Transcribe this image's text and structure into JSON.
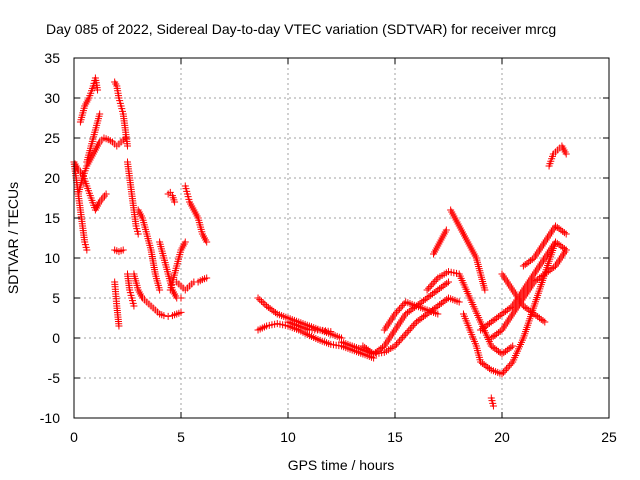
{
  "chart_data": {
    "type": "scatter",
    "title": "Day 085 of 2022, Sidereal Day-to-day VTEC variation (SDTVAR) for receiver mrcg",
    "xlabel": "GPS time / hours",
    "ylabel": "SDTVAR / TECUs",
    "xlim": [
      0,
      25
    ],
    "ylim": [
      -10,
      35
    ],
    "xticks": [
      0,
      5,
      10,
      15,
      20,
      25
    ],
    "yticks": [
      -10,
      -5,
      0,
      5,
      10,
      15,
      20,
      25,
      30,
      35
    ],
    "grid": true,
    "marker": "+",
    "color": "#ff0000",
    "series": [
      {
        "x": [
          0.0,
          0.2,
          0.4,
          0.6,
          0.8,
          1.0,
          1.2,
          1.5
        ],
        "y": [
          22,
          21,
          20.5,
          19,
          17.5,
          16,
          17,
          18
        ]
      },
      {
        "x": [
          0.3,
          0.5,
          0.7,
          0.9,
          1.0,
          1.1
        ],
        "y": [
          27,
          29,
          30,
          31.5,
          32.5,
          31
        ]
      },
      {
        "x": [
          0.0,
          0.1,
          0.2,
          0.3,
          0.4,
          0.5,
          0.6
        ],
        "y": [
          22,
          20,
          18,
          16,
          14,
          12,
          11
        ]
      },
      {
        "x": [
          0.2,
          0.4,
          0.6,
          0.8,
          1.0,
          1.2,
          1.4,
          1.6,
          1.8,
          2.0,
          2.2,
          2.4
        ],
        "y": [
          18,
          20,
          21.5,
          22.5,
          23.5,
          24.5,
          25,
          24.8,
          24.5,
          24,
          24.5,
          25
        ]
      },
      {
        "x": [
          0.6,
          0.8,
          1.0,
          1.2
        ],
        "y": [
          22,
          24,
          26,
          28
        ]
      },
      {
        "x": [
          1.9,
          2.0,
          2.1,
          2.2,
          2.3,
          2.4,
          2.5
        ],
        "y": [
          32,
          31.5,
          30,
          29,
          28,
          26,
          24
        ]
      },
      {
        "x": [
          2.5,
          2.6,
          2.7,
          2.8,
          2.9,
          3.0
        ],
        "y": [
          22,
          20,
          18,
          16,
          14,
          13
        ]
      },
      {
        "x": [
          1.9,
          2.1,
          2.3
        ],
        "y": [
          11,
          10.8,
          11
        ]
      },
      {
        "x": [
          1.9,
          2.0,
          2.1
        ],
        "y": [
          7,
          4,
          1.5
        ]
      },
      {
        "x": [
          2.5,
          2.6,
          2.7,
          2.8
        ],
        "y": [
          8,
          6,
          5,
          4
        ]
      },
      {
        "x": [
          2.8,
          3.0,
          3.2,
          3.4,
          3.6,
          3.8,
          4.0,
          4.2,
          4.4,
          4.6,
          4.8,
          5.0
        ],
        "y": [
          8,
          6,
          5,
          4.5,
          4,
          3.5,
          3,
          2.8,
          2.7,
          2.8,
          3,
          3.2
        ]
      },
      {
        "x": [
          3.0,
          3.2,
          3.4,
          3.6,
          3.8,
          4.0
        ],
        "y": [
          16,
          15,
          13,
          11,
          8,
          6
        ]
      },
      {
        "x": [
          4.0,
          4.2,
          4.4,
          4.6,
          4.8,
          5.0
        ],
        "y": [
          12,
          10,
          8,
          6,
          5,
          5
        ]
      },
      {
        "x": [
          4.4,
          4.5,
          4.6,
          4.7
        ],
        "y": [
          18,
          18.2,
          17.8,
          17
        ]
      },
      {
        "x": [
          4.8,
          5.0,
          5.2,
          5.4,
          5.6,
          5.8,
          6.0,
          6.2
        ],
        "y": [
          7,
          6.5,
          6,
          6.5,
          7,
          7,
          7.3,
          7.5
        ]
      },
      {
        "x": [
          5.2,
          5.3,
          5.4,
          5.6,
          5.8,
          6.0,
          6.2
        ],
        "y": [
          19,
          18,
          17,
          16,
          15,
          13,
          12
        ]
      },
      {
        "x": [
          4.5,
          4.6,
          4.8,
          5.0,
          5.2
        ],
        "y": [
          6,
          7,
          9,
          11,
          12
        ]
      },
      {
        "x": [
          8.6,
          9.0,
          9.5,
          10.0,
          10.5,
          11.0,
          11.5,
          12.0,
          12.5
        ],
        "y": [
          5,
          4,
          3,
          2.5,
          2,
          1.5,
          1,
          0.5,
          0
        ]
      },
      {
        "x": [
          8.6,
          9.0,
          9.5,
          10.0,
          10.5,
          11.0,
          11.5,
          12.0,
          12.5,
          13.0,
          13.5,
          14.0
        ],
        "y": [
          1,
          1.5,
          1.8,
          1.5,
          1,
          0.3,
          -0.3,
          -0.8,
          -1,
          -1.5,
          -2,
          -2.5
        ]
      },
      {
        "x": [
          10.0,
          10.5,
          11.0,
          11.5,
          12.0
        ],
        "y": [
          2,
          1.5,
          1,
          1,
          0.8
        ]
      },
      {
        "x": [
          12.5,
          13.0,
          13.5,
          14.0,
          14.5,
          15.0,
          15.5,
          16.0,
          16.5,
          17.0,
          17.5,
          18.0
        ],
        "y": [
          -0.5,
          -1,
          -1.5,
          -2,
          -1.8,
          -1,
          0.5,
          2,
          3,
          4,
          5,
          4.5
        ]
      },
      {
        "x": [
          13.5,
          14.0,
          14.5,
          15.0,
          15.5,
          16.0,
          16.5,
          17.0,
          17.5
        ],
        "y": [
          -1,
          -2,
          -1,
          1,
          3,
          4,
          5,
          6,
          7
        ]
      },
      {
        "x": [
          14.5,
          15.0,
          15.5,
          16.0,
          16.5,
          17.0
        ],
        "y": [
          1,
          3,
          4.5,
          4,
          3.5,
          3
        ]
      },
      {
        "x": [
          16.5,
          17.0,
          17.5,
          18.0,
          18.5,
          19.0,
          19.5,
          20.0,
          20.5
        ],
        "y": [
          6,
          7.5,
          8.3,
          8,
          5,
          2,
          -1,
          -2,
          -1
        ]
      },
      {
        "x": [
          16.8,
          17.0,
          17.2,
          17.4
        ],
        "y": [
          10.5,
          11.5,
          12.5,
          13.5
        ]
      },
      {
        "x": [
          17.6,
          18.0,
          18.4,
          18.8,
          19.2
        ],
        "y": [
          16,
          14,
          12,
          10,
          6
        ]
      },
      {
        "x": [
          18.2,
          18.5,
          18.8,
          19.0,
          19.5,
          20.0,
          20.5,
          21.0,
          21.5,
          22.0,
          22.5,
          23.0
        ],
        "y": [
          3,
          1,
          -1,
          -3,
          -4,
          -4.5,
          -3,
          0,
          4,
          8,
          12,
          11
        ]
      },
      {
        "x": [
          19.5,
          19.6
        ],
        "y": [
          -7.5,
          -8.5
        ]
      },
      {
        "x": [
          19.0,
          19.5,
          20.0,
          20.5,
          21.0,
          21.5,
          22.0,
          22.5
        ],
        "y": [
          1,
          2,
          3,
          4,
          6,
          8,
          10,
          12
        ]
      },
      {
        "x": [
          19.5,
          20.0,
          20.5,
          21.0,
          21.5,
          22.0,
          22.5,
          23.0
        ],
        "y": [
          0,
          1,
          3,
          5,
          7,
          8,
          9,
          11
        ]
      },
      {
        "x": [
          20.0,
          20.5,
          21.0,
          21.5,
          22.0
        ],
        "y": [
          8,
          6,
          4,
          3,
          2
        ]
      },
      {
        "x": [
          21.0,
          21.5,
          22.0,
          22.5,
          23.0
        ],
        "y": [
          9,
          10,
          12,
          14,
          13
        ]
      },
      {
        "x": [
          22.2,
          22.4,
          22.6,
          22.8,
          23.0
        ],
        "y": [
          21.5,
          23,
          23.5,
          24,
          23
        ]
      }
    ]
  }
}
